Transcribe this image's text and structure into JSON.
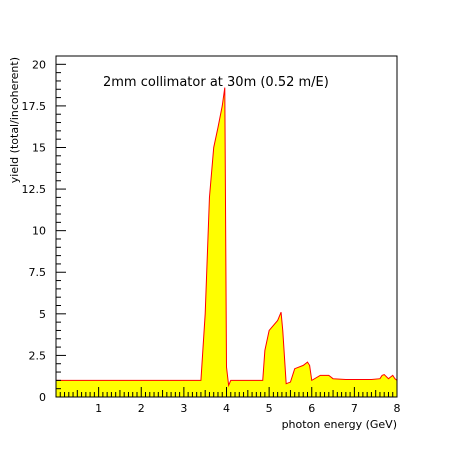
{
  "chart_data": {
    "type": "area",
    "title": "2mm collimator at 30m (0.52 m/E)",
    "xlabel": "photon energy (GeV)",
    "ylabel": "yield (total/incoherent)",
    "xlim": [
      0,
      8
    ],
    "ylim": [
      0,
      20.5
    ],
    "xticks": [
      1,
      2,
      3,
      4,
      5,
      6,
      7,
      8
    ],
    "xtick_labels": [
      "1",
      "2",
      "3",
      "4",
      "5",
      "6",
      "7",
      "8"
    ],
    "yticks": [
      0,
      2.5,
      5,
      7.5,
      10,
      12.5,
      15,
      17.5,
      20
    ],
    "ytick_labels": [
      "0",
      "2.5",
      "5",
      "7.5",
      "10",
      "12.5",
      "15",
      "17.5",
      "20"
    ],
    "grid": false,
    "fill_color": "#ffff00",
    "line_color": "#ff0000",
    "series": [
      {
        "x": [
          0,
          3.4,
          3.5,
          3.6,
          3.7,
          3.8,
          3.9,
          3.96,
          4.0,
          4.05,
          4.1,
          4.5,
          4.85,
          4.9,
          5.0,
          5.1,
          5.2,
          5.28,
          5.32,
          5.4,
          5.5,
          5.6,
          5.8,
          5.9,
          5.95,
          6.0,
          6.2,
          6.4,
          6.5,
          6.8,
          7.0,
          7.4,
          7.6,
          7.65,
          7.7,
          7.8,
          7.85,
          7.9,
          7.95,
          8.0
        ],
        "y": [
          1.0,
          1.0,
          5.0,
          12.0,
          15.0,
          16.2,
          17.5,
          18.6,
          1.8,
          0.7,
          1.0,
          1.0,
          1.0,
          2.8,
          4.0,
          4.3,
          4.6,
          5.1,
          4.0,
          0.8,
          0.9,
          1.7,
          1.9,
          2.1,
          1.9,
          1.0,
          1.3,
          1.3,
          1.1,
          1.05,
          1.05,
          1.05,
          1.1,
          1.3,
          1.35,
          1.1,
          1.2,
          1.3,
          1.1,
          1.0
        ]
      }
    ]
  }
}
